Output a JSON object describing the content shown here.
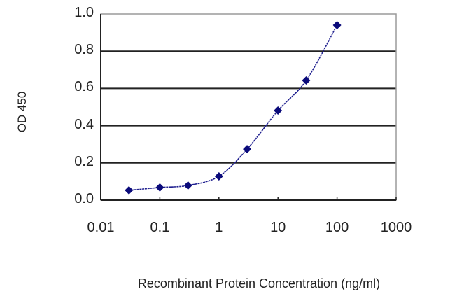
{
  "chart_data": {
    "type": "line",
    "title": "",
    "xlabel": "Recombinant Protein Concentration (ng/ml)",
    "ylabel": "OD 450",
    "x_scale": "log",
    "xlim": [
      0.01,
      1000
    ],
    "ylim": [
      0.0,
      1.0
    ],
    "x_tick_labels": [
      "0.01",
      "0.1",
      "1",
      "10",
      "100",
      "1000"
    ],
    "y_tick_labels": [
      "0.0",
      "0.2",
      "0.4",
      "0.6",
      "0.8",
      "1.0"
    ],
    "grid": "horizontal",
    "legend": null,
    "series": [
      {
        "name": "OD 450",
        "color": "#1f1f8f",
        "marker": "diamond",
        "x": [
          0.03,
          0.1,
          0.3,
          1,
          3,
          10,
          30,
          100
        ],
        "values": [
          0.053,
          0.068,
          0.079,
          0.128,
          0.274,
          0.481,
          0.643,
          0.94
        ]
      }
    ]
  }
}
